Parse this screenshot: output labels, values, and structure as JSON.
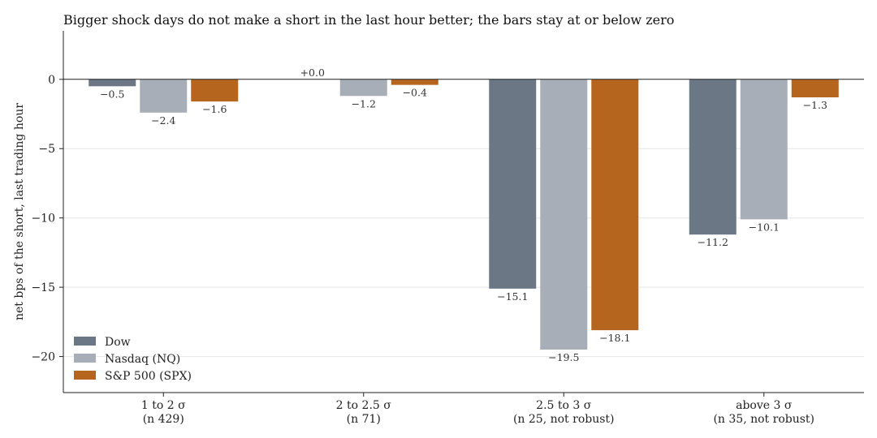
{
  "chart_data": {
    "type": "bar",
    "title": "Bigger shock days do not make a short in the last hour better; the bars stay at or below zero",
    "ylabel": "net bps of the short, last trading hour",
    "xlabel": "",
    "ylim": [
      -22.6,
      3.5
    ],
    "yticks": [
      0,
      -5,
      -10,
      -15,
      -20
    ],
    "ytick_labels": [
      "0",
      "−5",
      "−10",
      "−15",
      "−20"
    ],
    "grid": "horizontal",
    "legend_position": "lower-left",
    "categories": [
      [
        "1 to 2 σ",
        "(n 429)"
      ],
      [
        "2 to 2.5 σ",
        "(n 71)"
      ],
      [
        "2.5 to 3 σ",
        "(n 25, not robust)"
      ],
      [
        "above 3 σ",
        "(n 35, not robust)"
      ]
    ],
    "series": [
      {
        "name": "Dow",
        "color": "#6b7785",
        "values": [
          -0.5,
          0.0,
          -15.1,
          -11.2
        ],
        "labels": [
          "−0.5",
          "+0.0",
          "−15.1",
          "−11.2"
        ]
      },
      {
        "name": "Nasdaq (NQ)",
        "color": "#a8aeb7",
        "values": [
          -2.4,
          -1.2,
          -19.5,
          -10.1
        ],
        "labels": [
          "−2.4",
          "−1.2",
          "−19.5",
          "−10.1"
        ]
      },
      {
        "name": "S&P 500 (SPX)",
        "color": "#b5651d",
        "values": [
          -1.6,
          -0.4,
          -18.1,
          -1.3
        ],
        "labels": [
          "−1.6",
          "−0.4",
          "−18.1",
          "−1.3"
        ]
      }
    ]
  }
}
